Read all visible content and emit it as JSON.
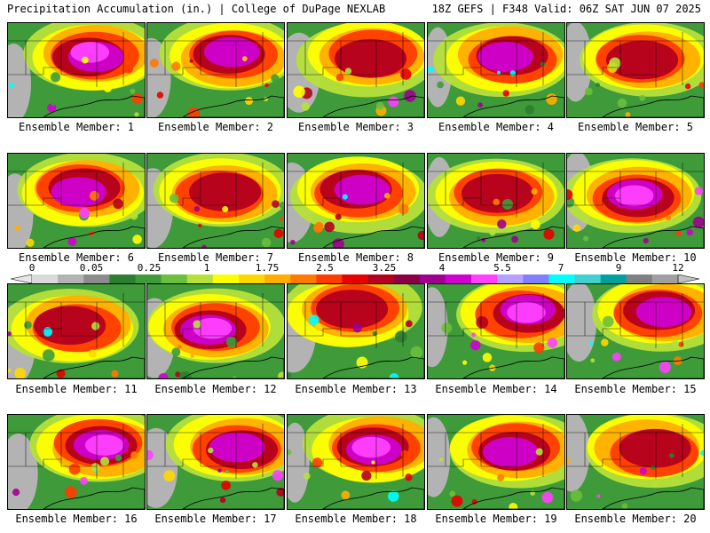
{
  "header": {
    "title_left": "Precipitation Accumulation (in.) | College of DuPage NEXLAB",
    "title_right": "18Z GEFS | F348 Valid: 06Z SAT JUN 07 2025"
  },
  "colorbar": {
    "tick_labels": [
      "0",
      "0.05",
      "0.25",
      "1",
      "1.75",
      "2.5",
      "3.25",
      "4",
      "5.5",
      "7",
      "9",
      "12"
    ],
    "colors": [
      "#d9d9d9",
      "#b3b3b3",
      "#8c8c8c",
      "#2e7d32",
      "#3f9a3a",
      "#6cbf3c",
      "#b6e03a",
      "#ffff00",
      "#ffd700",
      "#ffae00",
      "#ff7a00",
      "#ff3c00",
      "#e60000",
      "#b4001e",
      "#8b0045",
      "#a00090",
      "#d000d0",
      "#ff40ff",
      "#b4a0ff",
      "#8080ff",
      "#00ffff",
      "#40d0d0",
      "#00a0a0",
      "#808080",
      "#a0a0a0"
    ]
  },
  "panels": [
    {
      "label": "Ensemble Member: 1"
    },
    {
      "label": "Ensemble Member: 2"
    },
    {
      "label": "Ensemble Member: 3"
    },
    {
      "label": "Ensemble Member: 4"
    },
    {
      "label": "Ensemble Member: 5"
    },
    {
      "label": "Ensemble Member: 6"
    },
    {
      "label": "Ensemble Member: 7"
    },
    {
      "label": "Ensemble Member: 8"
    },
    {
      "label": "Ensemble Member: 9"
    },
    {
      "label": "Ensemble Member: 10"
    },
    {
      "label": "Ensemble Member: 11"
    },
    {
      "label": "Ensemble Member: 12"
    },
    {
      "label": "Ensemble Member: 13"
    },
    {
      "label": "Ensemble Member: 14"
    },
    {
      "label": "Ensemble Member: 15"
    },
    {
      "label": "Ensemble Member: 16"
    },
    {
      "label": "Ensemble Member: 17"
    },
    {
      "label": "Ensemble Member: 18"
    },
    {
      "label": "Ensemble Member: 19"
    },
    {
      "label": "Ensemble Member: 20"
    }
  ]
}
